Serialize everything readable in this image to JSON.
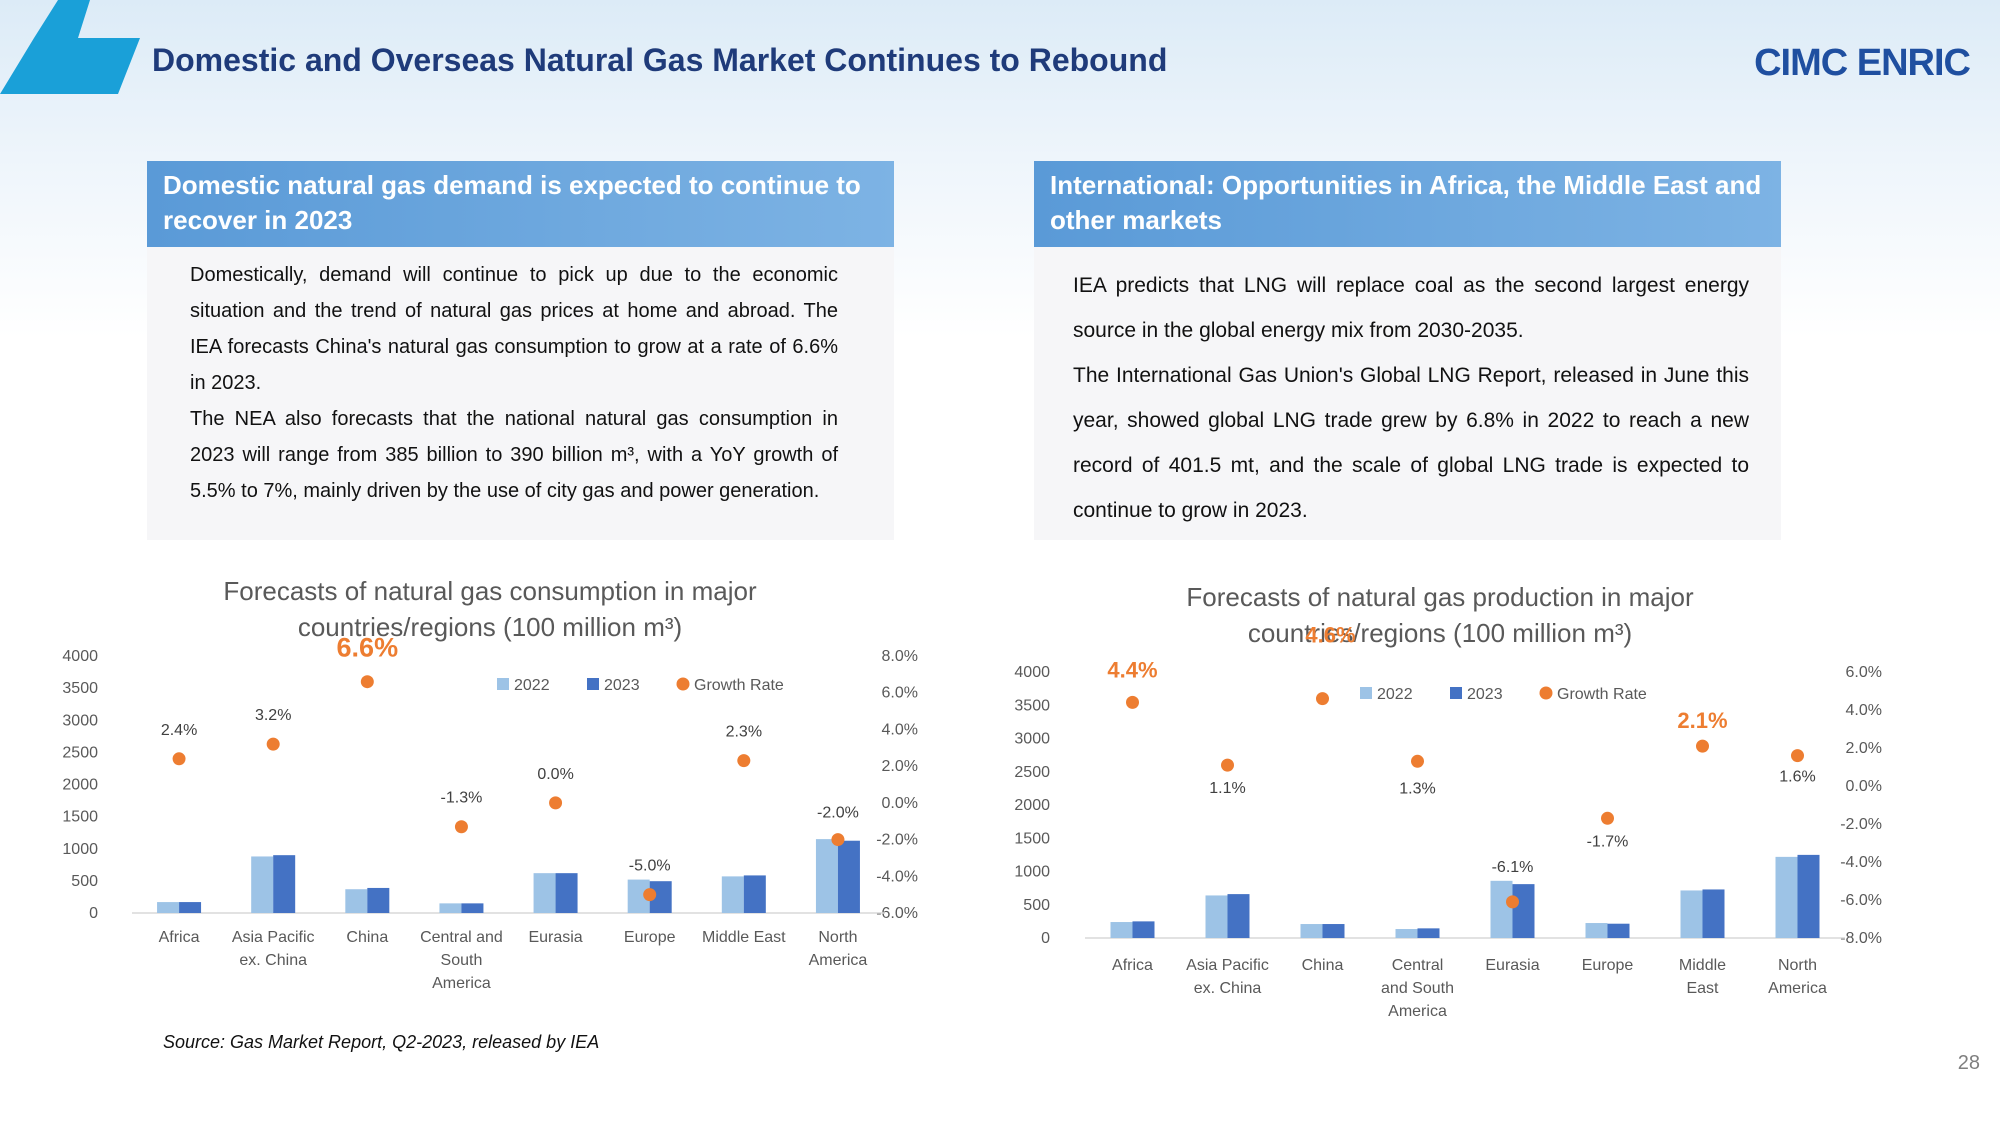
{
  "header": {
    "title": "Domestic and Overseas Natural Gas Market Continues to Rebound",
    "logo": "CIMC ENRIC",
    "page_number": "28"
  },
  "colors": {
    "bar_2022": "#9dc3e6",
    "bar_2023": "#4472c4",
    "growth_dot": "#ed7d31",
    "panel_header": "#5a9ad7",
    "title": "#1f3b7a"
  },
  "left_panel": {
    "heading": "Domestic natural gas demand is expected to continue to recover in 2023",
    "paragraphs": [
      "Domestically, demand will continue to pick up due to the economic situation and the trend of natural gas prices at home and abroad. The IEA forecasts China's natural gas consumption to grow at a rate of 6.6% in 2023.",
      "The NEA also forecasts that the national natural gas consumption in 2023 will range from 385 billion to 390 billion m³, with a YoY growth of 5.5% to 7%, mainly driven by the use of city gas and power generation."
    ]
  },
  "right_panel": {
    "heading": "International: Opportunities in Africa, the Middle East and other markets",
    "paragraphs": [
      "IEA predicts that LNG will replace coal as the second largest energy source in the global energy mix from 2030-2035.",
      "The International Gas Union's Global LNG Report, released in June this year, showed global LNG trade grew by 6.8% in 2022 to reach a new record of 401.5 mt, and the scale of global LNG trade is expected to continue to grow in 2023."
    ]
  },
  "source": "Source: Gas Market Report, Q2-2023, released by IEA",
  "chart_data": [
    {
      "type": "bar",
      "title": "Forecasts of natural gas consumption in major countries/regions (100 million m³)",
      "title_lines": [
        "Forecasts of natural gas consumption in major",
        "countries/regions (100 million m³)"
      ],
      "categories": [
        "Africa",
        "Asia Pacific ex. China",
        "China",
        "Central and South America",
        "Eurasia",
        "Europe",
        "Middle East",
        "North America"
      ],
      "category_lines": [
        [
          "Africa"
        ],
        [
          "Asia Pacific",
          "ex. China"
        ],
        [
          "China"
        ],
        [
          "Central and",
          "South",
          "America"
        ],
        [
          "Eurasia"
        ],
        [
          "Europe"
        ],
        [
          "Middle East"
        ],
        [
          "North",
          "America"
        ]
      ],
      "series": [
        {
          "name": "2022",
          "values": [
            170,
            880,
            370,
            150,
            620,
            520,
            570,
            1150
          ]
        },
        {
          "name": "2023",
          "values": [
            170,
            900,
            390,
            150,
            620,
            495,
            585,
            1125
          ]
        },
        {
          "name": "Growth Rate",
          "values": [
            2.4,
            3.2,
            6.6,
            -1.3,
            0.0,
            -5.0,
            2.3,
            -2.0
          ]
        }
      ],
      "growth_labels": [
        "2.4%",
        "3.2%",
        "6.6%",
        "-1.3%",
        "0.0%",
        "-5.0%",
        "2.3%",
        "-2.0%"
      ],
      "highlight": [
        2
      ],
      "ylim": [
        0,
        4000
      ],
      "yticks": [
        "0",
        "500",
        "1000",
        "1500",
        "2000",
        "2500",
        "3000",
        "3500",
        "4000"
      ],
      "y2lim": [
        -6.0,
        8.0
      ],
      "y2ticks": [
        "-6.0%",
        "-4.0%",
        "-2.0%",
        "0.0%",
        "2.0%",
        "4.0%",
        "6.0%",
        "8.0%"
      ],
      "legend": [
        "2022",
        "2023",
        "Growth Rate"
      ],
      "legend_position": "top-right"
    },
    {
      "type": "bar",
      "title": "Forecasts of natural gas production in major countries/regions (100 million m³)",
      "title_lines": [
        "Forecasts of natural gas production in major",
        "countries/regions (100 million m³)"
      ],
      "categories": [
        "Africa",
        "Asia Pacific ex. China",
        "China",
        "Central and South America",
        "Eurasia",
        "Europe",
        "Middle East",
        "North America"
      ],
      "category_lines": [
        [
          "Africa"
        ],
        [
          "Asia Pacific",
          "ex. China"
        ],
        [
          "China"
        ],
        [
          "Central",
          "and South",
          "America"
        ],
        [
          "Eurasia"
        ],
        [
          "Europe"
        ],
        [
          "Middle",
          "East"
        ],
        [
          "North",
          "America"
        ]
      ],
      "series": [
        {
          "name": "2022",
          "values": [
            240,
            640,
            210,
            135,
            860,
            225,
            715,
            1220
          ]
        },
        {
          "name": "2023",
          "values": [
            250,
            660,
            210,
            145,
            810,
            215,
            730,
            1250
          ]
        },
        {
          "name": "Growth Rate",
          "values": [
            4.4,
            1.1,
            4.6,
            1.3,
            -6.1,
            -1.7,
            2.1,
            1.6
          ]
        }
      ],
      "growth_labels": [
        "4.4%",
        "1.1%",
        "4.6%",
        "1.3%",
        "-6.1%",
        "-1.7%",
        "2.1%",
        "1.6%"
      ],
      "highlight": [
        0,
        2,
        6
      ],
      "ylim": [
        0,
        4000
      ],
      "yticks": [
        "0",
        "500",
        "1000",
        "1500",
        "2000",
        "2500",
        "3000",
        "3500",
        "4000"
      ],
      "y2lim": [
        -8.0,
        6.0
      ],
      "y2ticks": [
        "-8.0%",
        "-6.0%",
        "-4.0%",
        "-2.0%",
        "0.0%",
        "2.0%",
        "4.0%",
        "6.0%"
      ],
      "legend": [
        "2022",
        "2023",
        "Growth Rate"
      ],
      "legend_position": "top-right"
    }
  ]
}
